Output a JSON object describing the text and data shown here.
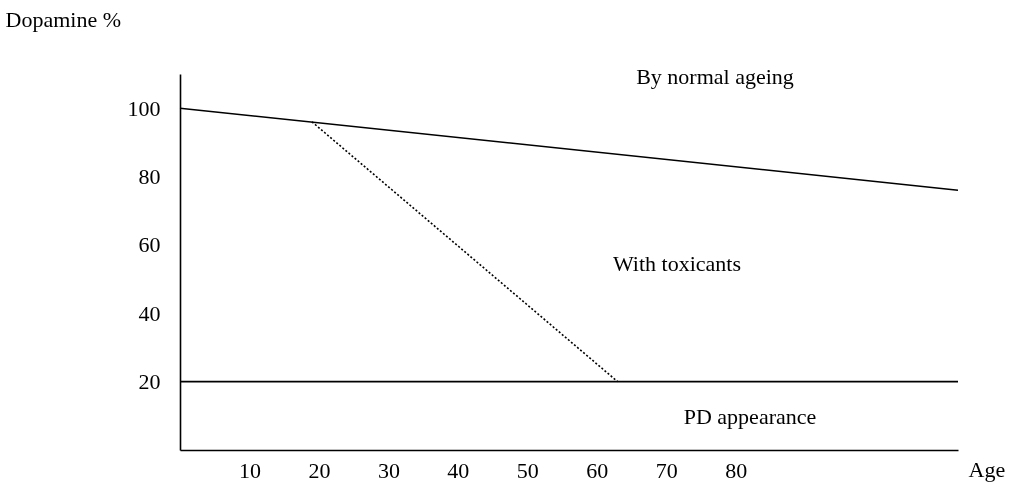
{
  "chart_data": {
    "type": "line",
    "xlabel": "Age",
    "ylabel": "Dopamine %",
    "xlim": [
      0,
      112
    ],
    "ylim": [
      0,
      110
    ],
    "xticks": [
      10,
      20,
      30,
      40,
      50,
      60,
      70,
      80
    ],
    "yticks": [
      20,
      40,
      60,
      80,
      100
    ],
    "series": [
      {
        "color": "#000000",
        "line_style": "solid",
        "x": [
          0,
          112
        ],
        "values": [
          100,
          76
        ]
      },
      {
        "color": "#000000",
        "line_style": "dotted",
        "x": [
          19,
          63
        ],
        "values": [
          96,
          20
        ]
      },
      {
        "color": "#000000",
        "line_style": "solid",
        "x": [
          0,
          112
        ],
        "values": [
          20,
          20
        ]
      }
    ],
    "annotations": [
      "By normal ageing",
      "With toxicants",
      "PD appearance"
    ],
    "grid": false,
    "marker": "none"
  }
}
